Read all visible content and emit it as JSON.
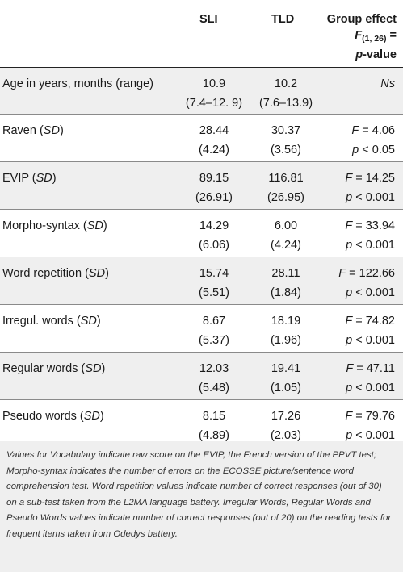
{
  "header": {
    "col_sli": "SLI",
    "col_tld": "TLD",
    "col_group_line1": "Group effect",
    "col_group_f": "F",
    "col_group_sub": "(1, 26)",
    "col_group_eq": " =",
    "col_group_p": "p",
    "col_group_pvalue": "-value"
  },
  "rows": [
    {
      "label": "Age in years, months (range)",
      "sd": "",
      "sli": "10.9",
      "sli2": "(7.4–12. 9)",
      "tld": "10.2",
      "tld2": "(7.6–13.9)",
      "g1": "Ns",
      "g2": ""
    },
    {
      "label": "Raven (",
      "sd": "SD",
      "sli": "28.44",
      "sli2": "(4.24)",
      "tld": "30.37",
      "tld2": "(3.56)",
      "g1": "F = 4.06",
      "g2": "p < 0.05"
    },
    {
      "label": "EVIP (",
      "sd": "SD",
      "sli": "89.15",
      "sli2": "(26.91)",
      "tld": "116.81",
      "tld2": "(26.95)",
      "g1": "F = 14.25",
      "g2": "p < 0.001"
    },
    {
      "label": "Morpho-syntax (",
      "sd": "SD",
      "sli": "14.29",
      "sli2": "(6.06)",
      "tld": "6.00",
      "tld2": "(4.24)",
      "g1": "F = 33.94",
      "g2": "p < 0.001"
    },
    {
      "label": "Word repetition (",
      "sd": "SD",
      "sli": "15.74",
      "sli2": "(5.51)",
      "tld": "28.11",
      "tld2": "(1.84)",
      "g1": "F = 122.66",
      "g2": "p < 0.001"
    },
    {
      "label": "Irregul. words (",
      "sd": "SD",
      "sli": "8.67",
      "sli2": "(5.37)",
      "tld": "18.19",
      "tld2": "(1.96)",
      "g1": "F = 74.82",
      "g2": "p < 0.001"
    },
    {
      "label": "Regular words (",
      "sd": "SD",
      "sli": "12.03",
      "sli2": "(5.48)",
      "tld": "19.41",
      "tld2": "(1.05)",
      "g1": "F = 47.11",
      "g2": "p < 0.001"
    },
    {
      "label": "Pseudo words (",
      "sd": "SD",
      "sli": "8.15",
      "sli2": "(4.89)",
      "tld": "17.26",
      "tld2": "(2.03)",
      "g1": "F = 79.76",
      "g2": "p < 0.001"
    }
  ],
  "note": "Values for Vocabulary indicate raw score on the EVIP, the French version of the PPVT test; Morpho-syntax indicates the number of errors on the ECOSSE picture/sentence word comprehension test. Word repetition values indicate number of correct responses (out of 30) on a sub-test taken from the L2MA language battery. Irregular Words, Regular Words and Pseudo Words values indicate number of correct responses (out of 20) on the reading tests for frequent items taken from Odedys battery."
}
